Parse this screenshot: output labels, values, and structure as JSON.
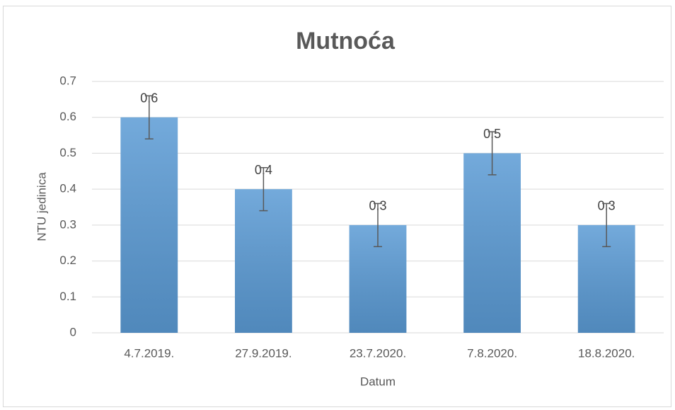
{
  "chart_data": {
    "type": "bar",
    "title": "Mutnoća",
    "x_label": "Datum",
    "y_label": "NTU jedinica",
    "categories": [
      "4.7.2019.",
      "27.9.2019.",
      "23.7.2020.",
      "7.8.2020.",
      "18.8.2020."
    ],
    "values": [
      0.6,
      0.4,
      0.3,
      0.5,
      0.3
    ],
    "errors": [
      0.06,
      0.06,
      0.06,
      0.06,
      0.06
    ],
    "color": "#5b9bd5",
    "ylim": [
      0,
      0.7
    ],
    "yticks": [
      0,
      0.1,
      0.2,
      0.3,
      0.4,
      0.5,
      0.6,
      0.7
    ],
    "grid": true,
    "data_labels": true
  }
}
